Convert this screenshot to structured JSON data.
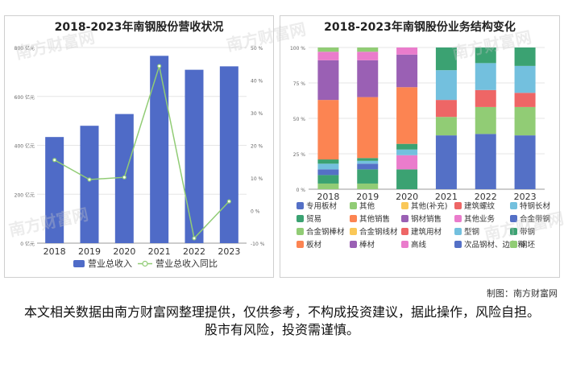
{
  "credit": "制图：南方财富网",
  "disclaimer": "本文相关数据由南方财富网整理提供，仅供参考，不构成投资建议，据此操作，风险自担。股市有风险，投资需谨慎。",
  "watermark": "南方财富网",
  "chart_data": [
    {
      "type": "bar",
      "title": "2018-2023年南钢股份营收状况",
      "categories": [
        "2018",
        "2019",
        "2020",
        "2021",
        "2022",
        "2023"
      ],
      "series": [
        {
          "name": "营业总收入",
          "type": "bar",
          "axis": "left",
          "color": "#4f6bc7",
          "values": [
            434,
            480,
            528,
            766,
            709,
            723
          ]
        },
        {
          "name": "营业总收入同比",
          "type": "line",
          "axis": "right",
          "color": "#91cc75",
          "values": [
            15.5,
            9.5,
            10.2,
            44.3,
            -8.5,
            2.8
          ]
        }
      ],
      "y_left": {
        "min": 0,
        "max": 800,
        "ticks": [
          0,
          200,
          400,
          600,
          800
        ],
        "tick_labels": [
          "0 亿元",
          "200 亿元",
          "400 亿元",
          "600 亿元",
          "800 亿元"
        ]
      },
      "y_right": {
        "min": -10,
        "max": 50,
        "ticks": [
          -10,
          0,
          10,
          20,
          30,
          40,
          50
        ],
        "tick_labels": [
          "-10 %",
          "0 %",
          "10 %",
          "20 %",
          "30 %",
          "40 %",
          "50 %"
        ]
      },
      "legend": "bottom"
    },
    {
      "type": "bar",
      "stacked": true,
      "title": "2018-2023年南钢股份业务结构变化",
      "categories": [
        "2018",
        "2019",
        "2020",
        "2021",
        "2022",
        "2023"
      ],
      "y_axis": {
        "min": 0,
        "max": 100,
        "ticks": [
          0,
          25,
          50,
          75,
          100
        ],
        "tick_labels": [
          "0 %",
          "25 %",
          "50 %",
          "75 %",
          "100 %"
        ]
      },
      "series": [
        {
          "name": "专用板材",
          "color": "#5470c6",
          "values": [
            0,
            0,
            0,
            38,
            39,
            38
          ]
        },
        {
          "name": "其他",
          "color": "#91cc75",
          "values": [
            4,
            4,
            0,
            0,
            0,
            0
          ]
        },
        {
          "name": "其他(补充)",
          "color": "#fac858",
          "values": [
            0,
            0,
            0,
            0,
            0,
            0
          ]
        },
        {
          "name": "建筑螺纹",
          "color": "#ee6666",
          "values": [
            0,
            0,
            0,
            0,
            0,
            0
          ]
        },
        {
          "name": "特钢长材",
          "color": "#73c0de",
          "values": [
            0,
            0,
            0,
            0,
            0,
            0
          ]
        },
        {
          "name": "贸易",
          "color": "#3ba272",
          "values": [
            6,
            10,
            14,
            0,
            0,
            0
          ]
        },
        {
          "name": "其他销售",
          "color": "#fc8452",
          "values": [
            0,
            0,
            0,
            0,
            0,
            0
          ]
        },
        {
          "name": "钢材销售",
          "color": "#9a60b4",
          "values": [
            0,
            0,
            0,
            0,
            0,
            0
          ]
        },
        {
          "name": "其他业务",
          "color": "#ea7ccc",
          "values": [
            0,
            0,
            10,
            0,
            0,
            0
          ]
        },
        {
          "name": "合金带钢",
          "color": "#5470c6",
          "values": [
            4,
            4,
            0,
            0,
            0,
            0
          ]
        },
        {
          "name": "合金钢棒材",
          "color": "#91cc75",
          "values": [
            0,
            0,
            0,
            13,
            19,
            20
          ]
        },
        {
          "name": "合金钢线材",
          "color": "#fac858",
          "values": [
            0,
            0,
            0,
            0,
            0,
            0
          ]
        },
        {
          "name": "建筑用材",
          "color": "#ee6666",
          "values": [
            0,
            0,
            0,
            12,
            12,
            10
          ]
        },
        {
          "name": "型钢",
          "color": "#73c0de",
          "values": [
            4,
            2,
            4,
            21,
            19,
            19
          ]
        },
        {
          "name": "带钢",
          "color": "#3ba272",
          "values": [
            3,
            2,
            4,
            16,
            11,
            13
          ]
        },
        {
          "name": "板材",
          "color": "#fc8452",
          "values": [
            42,
            43,
            40,
            0,
            0,
            0
          ]
        },
        {
          "name": "棒材",
          "color": "#9a60b4",
          "values": [
            28,
            26,
            23,
            0,
            0,
            0
          ]
        },
        {
          "name": "高线",
          "color": "#ea7ccc",
          "values": [
            6,
            6,
            5,
            0,
            0,
            0
          ]
        },
        {
          "name": "次品钢材、边角料",
          "color": "#5470c6",
          "values": [
            0,
            0,
            0,
            0,
            0,
            0
          ]
        },
        {
          "name": "钢坯",
          "color": "#91cc75",
          "values": [
            3,
            3,
            0,
            0,
            0,
            0
          ]
        }
      ],
      "legend": "bottom"
    }
  ]
}
